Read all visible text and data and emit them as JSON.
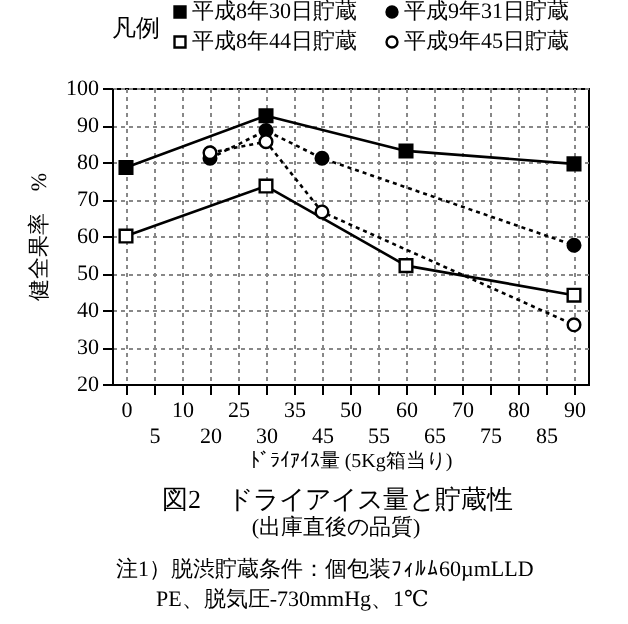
{
  "chart_data": {
    "type": "line",
    "title": "図2　ドライアイス量と貯蔵性",
    "subtitle": "(出庫直後の品質)",
    "xlabel": "ﾄﾞﾗｲｱｲｽ量 (5Kg箱当り)",
    "ylabel": "健全果率　%",
    "legend_title": "凡例",
    "annotations": [
      "注1）脱渋貯蔵条件：個包装ﾌｨﾙﾑ60µmLLD",
      "PE、脱気圧-730mmHg、1℃"
    ],
    "categories": [
      "0",
      "5",
      "10",
      "20",
      "25",
      "30",
      "35",
      "45",
      "50",
      "55",
      "60",
      "65",
      "70",
      "75",
      "80",
      "85",
      "90"
    ],
    "series": [
      {
        "name": "平成8年30日貯蔵",
        "color": "#000000",
        "marker": "square",
        "line_style": "solid",
        "values": [
          78.5,
          null,
          null,
          null,
          null,
          92.5,
          null,
          null,
          null,
          null,
          83,
          null,
          null,
          null,
          null,
          null,
          79.5
        ]
      },
      {
        "name": "平成9年31日貯蔵",
        "color": "#000000",
        "marker": "circle",
        "line_style": "dotted",
        "values": [
          null,
          null,
          null,
          81,
          null,
          88.5,
          null,
          81,
          null,
          null,
          null,
          null,
          null,
          null,
          null,
          null,
          57.5
        ]
      },
      {
        "name": "平成8年44日貯蔵",
        "color": "#ffffff",
        "marker": "square",
        "line_style": "solid",
        "values": [
          60,
          null,
          null,
          null,
          null,
          73.5,
          null,
          null,
          null,
          null,
          52,
          null,
          null,
          null,
          null,
          null,
          44
        ]
      },
      {
        "name": "平成9年45日貯蔵",
        "color": "#ffffff",
        "marker": "circle",
        "line_style": "dotted",
        "values": [
          null,
          null,
          null,
          82.5,
          null,
          85.5,
          null,
          66.5,
          null,
          null,
          null,
          null,
          null,
          null,
          null,
          null,
          36
        ]
      }
    ],
    "ylim": [
      20,
      100
    ],
    "yticks": [
      20,
      30,
      40,
      50,
      60,
      70,
      80,
      90,
      100
    ],
    "grid": true,
    "legend": "top"
  }
}
